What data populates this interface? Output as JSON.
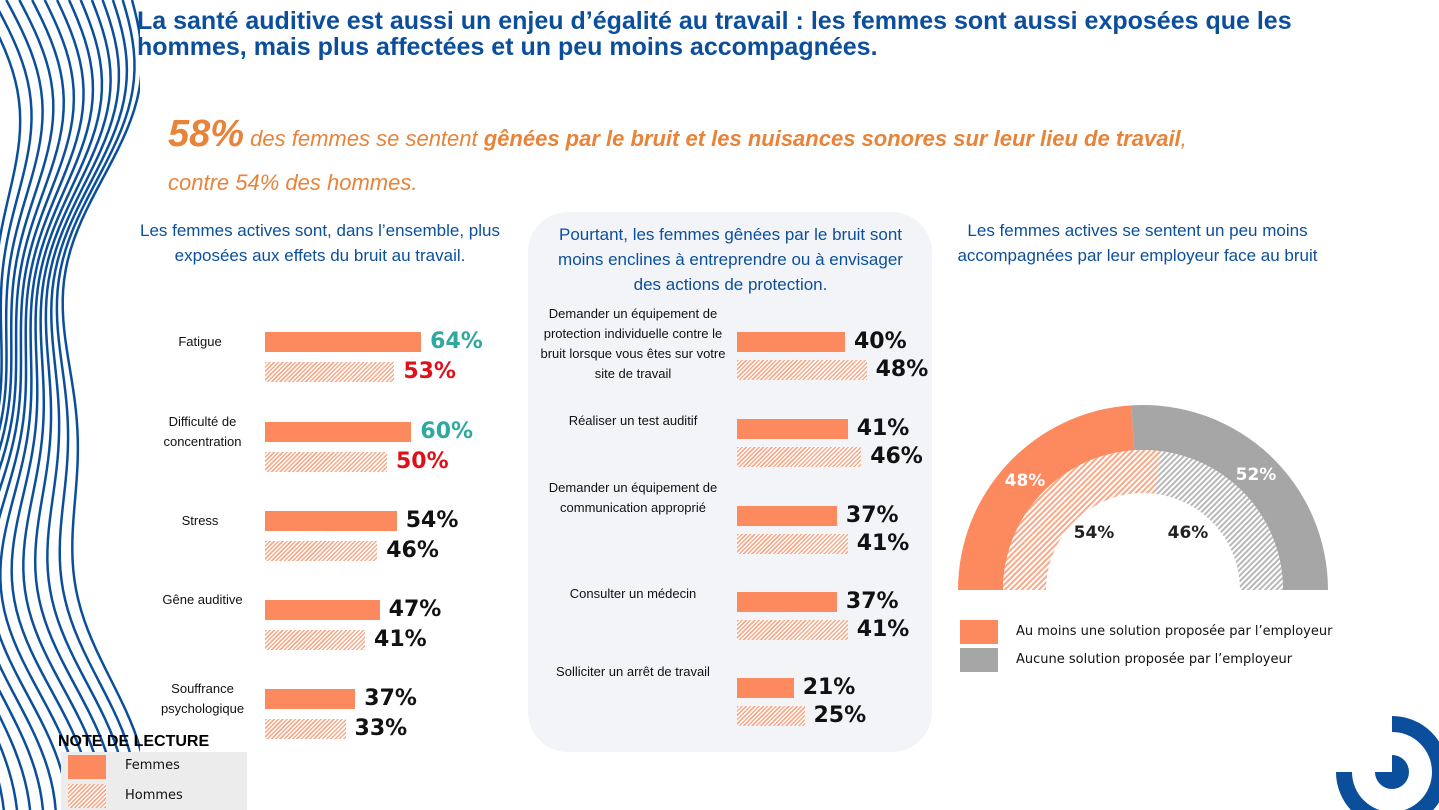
{
  "title": "La santé auditive est aussi un enjeu d’égalité au travail : les femmes sont aussi exposées que les hommes, mais plus affectées et un peu moins accompagnées.",
  "highlight": {
    "pct": "58%",
    "pre": " des femmes se sentent ",
    "bold": "gênées par le bruit et les nuisances sonores sur leur lieu de travail",
    "post": ",",
    "line2": "contre 54% des hommes."
  },
  "colors": {
    "femmes": "#fc8a5e",
    "hommes": "#f9a988",
    "gris": "#a6a6a6",
    "teal": "#2fa8a0",
    "red": "#e0101a",
    "blue": "#0b4f9c"
  },
  "chart_data": [
    {
      "type": "bar",
      "title": "Les femmes actives sont, dans l’ensemble, plus exposées aux effets du bruit au travail.",
      "categories": [
        "Fatigue",
        "Difficulté de concentration",
        "Stress",
        "Gêne auditive",
        "Souffrance psychologique"
      ],
      "series": [
        {
          "name": "Femmes",
          "values": [
            64,
            60,
            54,
            47,
            37
          ]
        },
        {
          "name": "Hommes",
          "values": [
            53,
            50,
            46,
            41,
            33
          ]
        }
      ]
    },
    {
      "type": "bar",
      "title": "Pourtant, les femmes gênées par le bruit sont moins enclines à entreprendre ou à envisager des actions de protection.",
      "categories": [
        "Demander un équipement de protection individuelle contre le bruit lorsque vous êtes sur votre site de travail",
        "Réaliser un test auditif",
        "Demander un équipement de communication approprié",
        "Consulter un médecin",
        "Solliciter un arrêt de travail"
      ],
      "series": [
        {
          "name": "Femmes",
          "values": [
            40,
            41,
            37,
            37,
            21
          ]
        },
        {
          "name": "Hommes",
          "values": [
            48,
            46,
            41,
            41,
            25
          ]
        }
      ]
    },
    {
      "type": "pie",
      "title": "Les femmes actives se sentent un peu moins accompagnées par leur employeur face au bruit",
      "legend": [
        "Au moins une solution proposée par l’employeur",
        "Aucune solution proposée par l’employeur"
      ],
      "series": [
        {
          "name": "Femmes",
          "values": [
            48,
            52
          ]
        },
        {
          "name": "Hommes",
          "values": [
            54,
            46
          ]
        }
      ]
    }
  ],
  "note": {
    "title": "NOTE DE LECTURE",
    "femmes": "Femmes",
    "hommes": "Hommes"
  }
}
